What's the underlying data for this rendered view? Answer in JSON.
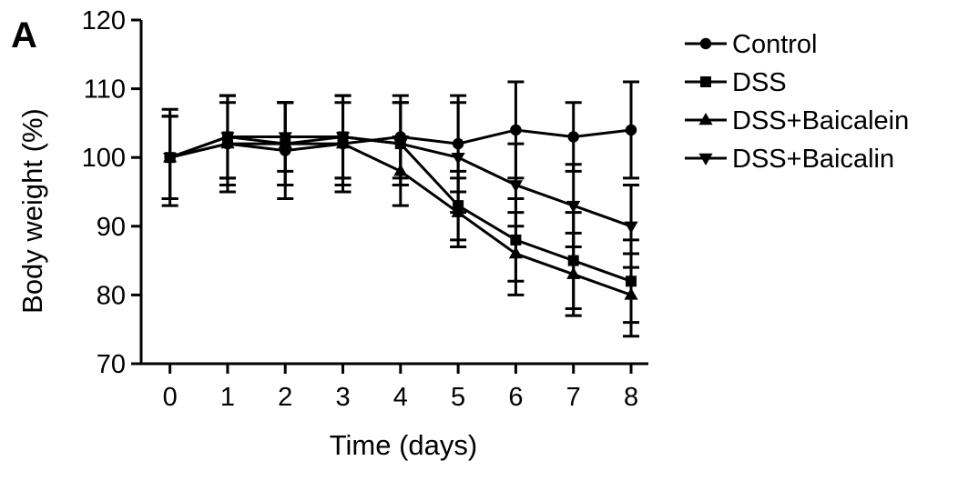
{
  "chart_data": {
    "type": "line",
    "panel_label": "A",
    "title": "",
    "xlabel": "Time (days)",
    "ylabel": "Body weight (%)",
    "x": [
      0,
      1,
      2,
      3,
      4,
      5,
      6,
      7,
      8
    ],
    "xticks": [
      "0",
      "1",
      "2",
      "3",
      "4",
      "5",
      "6",
      "7",
      "8"
    ],
    "ylim": [
      70,
      120
    ],
    "yticks": [
      "70",
      "80",
      "90",
      "100",
      "110",
      "120"
    ],
    "xlim": [
      -0.5,
      8.3
    ],
    "grid": false,
    "legend_position": "top-right",
    "series": [
      {
        "name": "Control",
        "marker": "circle",
        "values": [
          100,
          102,
          101,
          102,
          103,
          102,
          104,
          103,
          104
        ],
        "error": [
          6,
          7,
          7,
          7,
          6,
          7,
          7,
          5,
          7
        ]
      },
      {
        "name": "DSS",
        "marker": "square",
        "values": [
          100,
          103,
          102,
          103,
          102,
          93,
          88,
          85,
          82
        ],
        "error": [
          7,
          6,
          6,
          6,
          6,
          5,
          6,
          7,
          6
        ]
      },
      {
        "name": "DSS+Baicalein",
        "marker": "triangle-up",
        "values": [
          100,
          102,
          102,
          102,
          98,
          92,
          86,
          83,
          80
        ],
        "error": [
          6,
          6,
          6,
          6,
          5,
          5,
          6,
          6,
          6
        ]
      },
      {
        "name": "DSS+Baicalin",
        "marker": "triangle-down",
        "values": [
          100,
          103,
          103,
          103,
          102,
          100,
          96,
          93,
          90
        ],
        "error": [
          6,
          6,
          5,
          6,
          6,
          8,
          6,
          6,
          6
        ]
      }
    ]
  }
}
